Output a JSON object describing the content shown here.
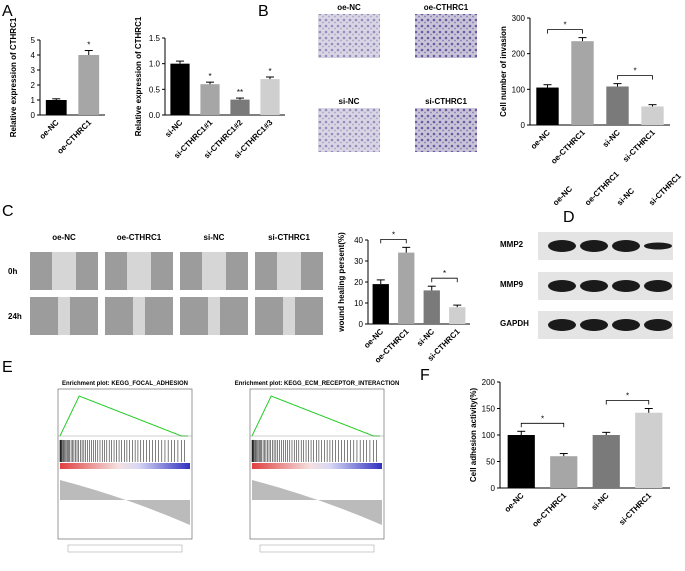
{
  "panel_letters": [
    "A",
    "B",
    "C",
    "D",
    "E",
    "F"
  ],
  "invasion": {
    "labels": [
      "oe-NC",
      "oe-CTHRC1",
      "si-NC",
      "si-CTHRC1"
    ]
  },
  "wound": {
    "columns": [
      "oe-NC",
      "oe-CTHRC1",
      "si-NC",
      "si-CTHRC1"
    ],
    "rows": [
      "0h",
      "24h"
    ]
  },
  "western": {
    "columns": [
      "oe-NC",
      "oe-CTHRC1",
      "si-NC",
      "si-CTHRC1"
    ],
    "rows": [
      "MMP2",
      "MMP9",
      "GAPDH"
    ]
  },
  "gsea": {
    "titles": [
      "Enrichment plot: KEGG_FOCAL_ADHESION",
      "Enrichment plot: KEGG_ECM_RECEPTOR_INTERACTION"
    ]
  },
  "chart_data": [
    {
      "type": "bar",
      "y_label": "Relative expression of CTHRC1",
      "categories": [
        "oe-NC",
        "oe-CTHRC1"
      ],
      "values": [
        1.0,
        4.0
      ],
      "errors": [
        0.08,
        0.3
      ],
      "colors": [
        "#000000",
        "#a6a6a6"
      ],
      "sig_labels": [
        null,
        "*"
      ],
      "ylim": [
        0,
        5
      ],
      "yticks": [
        0,
        1,
        2,
        3,
        4,
        5
      ]
    },
    {
      "type": "bar",
      "y_label": "Relative expression of CTHRC1",
      "categories": [
        "si-NC",
        "si-CTHRC1#1",
        "si-CTHRC1#2",
        "si-CTHRC1#3"
      ],
      "values": [
        1.0,
        0.6,
        0.3,
        0.7
      ],
      "errors": [
        0.05,
        0.04,
        0.03,
        0.04
      ],
      "colors": [
        "#000000",
        "#a6a6a6",
        "#7a7a7a",
        "#cfcfcf"
      ],
      "sig_labels": [
        null,
        "*",
        "**",
        "*"
      ],
      "ylim": [
        0,
        1.5
      ],
      "yticks": [
        {
          "value": 0,
          "label": "0.0"
        },
        0.5,
        {
          "value": 1,
          "label": "1.0"
        },
        1.5
      ]
    },
    {
      "type": "bar",
      "y_label": "Cell number of invasion",
      "categories": [
        "oe-NC",
        "oe-CTHRC1",
        "si-NC",
        "si-CTHRC1"
      ],
      "values": [
        105,
        235,
        108,
        52
      ],
      "errors": [
        8,
        10,
        8,
        5
      ],
      "colors": [
        "#000000",
        "#a6a6a6",
        "#7a7a7a",
        "#cfcfcf"
      ],
      "brackets": [
        {
          "label": "*",
          "from": "oe-NC",
          "to": "oe-CTHRC1"
        },
        {
          "label": "*",
          "from": "si-NC",
          "to": "si-CTHRC1"
        }
      ],
      "ylim": [
        0,
        300
      ],
      "yticks": [
        0,
        100,
        200,
        300
      ]
    },
    {
      "type": "bar",
      "y_label": "wound healing persent(%)",
      "categories": [
        "oe-NC",
        "oe-CTHRC1",
        "si-NC",
        "si-CTHRC1"
      ],
      "values": [
        19,
        34,
        16,
        8
      ],
      "errors": [
        2,
        2.5,
        2,
        1
      ],
      "colors": [
        "#000000",
        "#a6a6a6",
        "#7a7a7a",
        "#cfcfcf"
      ],
      "brackets": [
        {
          "label": "*",
          "from": "oe-NC",
          "to": "oe-CTHRC1"
        },
        {
          "label": "*",
          "from": "si-NC",
          "to": "si-CTHRC1"
        }
      ],
      "ylim": [
        0,
        40
      ],
      "yticks": [
        0,
        10,
        20,
        30,
        40
      ]
    },
    {
      "type": "bar",
      "y_label": "Cell adhesion activity(%)",
      "categories": [
        "oe-NC",
        "oe-CTHRC1",
        "si-NC",
        "si-CTHRC1"
      ],
      "values": [
        100,
        60,
        100,
        142
      ],
      "errors": [
        7,
        5,
        5,
        8
      ],
      "colors": [
        "#000000",
        "#a6a6a6",
        "#7a7a7a",
        "#cfcfcf"
      ],
      "brackets": [
        {
          "label": "*",
          "from": "oe-NC",
          "to": "oe-CTHRC1"
        },
        {
          "label": "*",
          "from": "si-NC",
          "to": "si-CTHRC1"
        }
      ],
      "ylim": [
        0,
        200
      ],
      "yticks": [
        0,
        50,
        100,
        150,
        200
      ]
    }
  ]
}
